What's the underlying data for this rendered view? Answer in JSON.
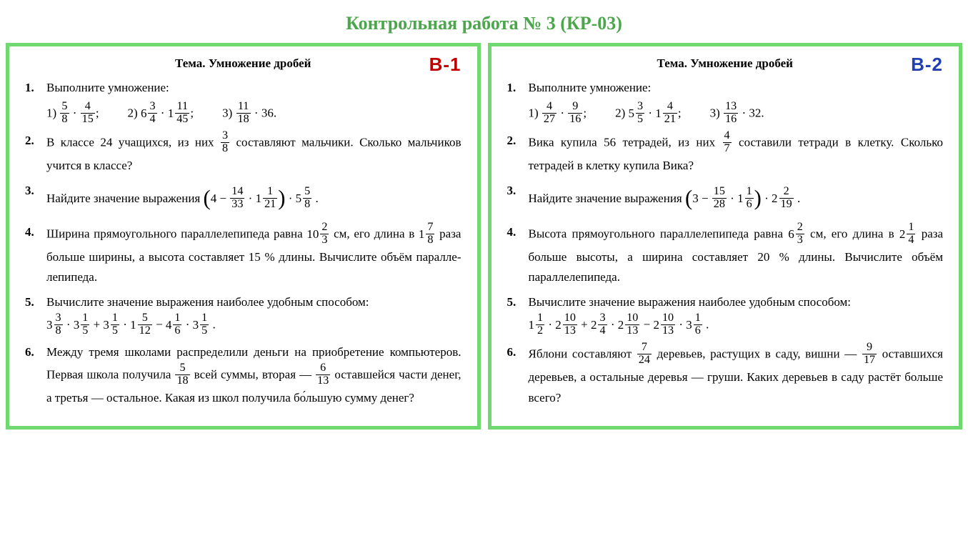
{
  "title": "Контрольная работа № 3 (КР-03)",
  "topic": "Тема. Умножение дробей",
  "accent_green": "#6fd96f",
  "title_color": "#4ca64c",
  "text_color": "#000000",
  "background_color": "#ffffff",
  "title_fontsize": 26,
  "body_fontsize": 17,
  "variants": [
    {
      "tag": "В-1",
      "tag_color": "#c00000",
      "problems": [
        {
          "number": "1.",
          "intro": "Выполните умножение:",
          "subs": [
            {
              "label": "1)",
              "expr": "<frac>5|8</frac> · <frac>4|15</frac>;"
            },
            {
              "label": "2)",
              "expr": "<mixed>6|3|4</mixed> · <mixed>1|11|45</mixed>;"
            },
            {
              "label": "3)",
              "expr": "<frac>11|18</frac> · 36."
            }
          ]
        },
        {
          "number": "2.",
          "html": "В классе 24 учащихся, из них <frac>3|8</frac> составляют мальчики. Сколько мальчиков учится в классе?"
        },
        {
          "number": "3.",
          "html": "Найдите значение выражения <lp>(</lp>4 − <frac>14|33</frac> · <mixed>1|1|21</mixed><rp>)</rp> · <mixed>5|5|8</mixed> ."
        },
        {
          "number": "4.",
          "html": "Ширина прямоугольного параллелепипеда равна <mixed>10|2|3</mixed> см, его длина в <mixed>1|7|8</mixed> раза больше ширины, а высо­та составляет 15 % длины. Вычислите объём паралле­лепипеда."
        },
        {
          "number": "5.",
          "html": "Вычислите значение выражения наиболее удобным способом:<br><mixed>3|3|8</mixed> · <mixed>3|1|5</mixed> + <mixed>3|1|5</mixed> · <mixed>1|5|12</mixed> − <mixed>4|1|6</mixed> · <mixed>3|1|5</mixed> ."
        },
        {
          "number": "6.",
          "html": "Между тремя школами распределили деньги на приоб­ретение компьютеров. Первая школа получила <frac>5|18</frac> всей суммы, вторая — <frac>6|13</frac> оставшейся части денег, а тре­тья — остальное. Какая из школ получила бо́льшую сумму денег?"
        }
      ]
    },
    {
      "tag": "В-2",
      "tag_color": "#2040b0",
      "problems": [
        {
          "number": "1.",
          "intro": "Выполните умножение:",
          "subs": [
            {
              "label": "1)",
              "expr": "<frac>4|27</frac> · <frac>9|16</frac>;"
            },
            {
              "label": "2)",
              "expr": "<mixed>5|3|5</mixed> · <mixed>1|4|21</mixed>;"
            },
            {
              "label": "3)",
              "expr": "<frac>13|16</frac> · 32."
            }
          ]
        },
        {
          "number": "2.",
          "html": "Вика купила 56 тетрадей, из них <frac>4|7</frac> составили тетради в клетку. Сколько тетрадей в клетку купила Вика?"
        },
        {
          "number": "3.",
          "html": "Найдите значение выражения <lp>(</lp>3 − <frac>15|28</frac> · <mixed>1|1|6</mixed><rp>)</rp> · <mixed>2|2|19</mixed> ."
        },
        {
          "number": "4.",
          "html": "Высота прямоугольного параллелепипеда равна <mixed>6|2|3</mixed> см, его длина в <mixed>2|1|4</mixed> раза больше высоты, а ширина состав­ляет 20 % длины. Вычислите объём параллелепипеда."
        },
        {
          "number": "5.",
          "html": "Вычислите значение выражения наиболее удобным способом:<br><mixed>1|1|2</mixed> · <mixed>2|10|13</mixed> + <mixed>2|3|4</mixed> · <mixed>2|10|13</mixed> − <mixed>2|10|13</mixed> · <mixed>3|1|6</mixed> ."
        },
        {
          "number": "6.",
          "html": "Яблони составляют <frac>7|24</frac> деревьев, растущих в саду, виш­ни — <frac>9|17</frac> оставшихся деревьев, а остальные деревья — груши. Каких деревьев в саду растёт больше всего?"
        }
      ]
    }
  ]
}
